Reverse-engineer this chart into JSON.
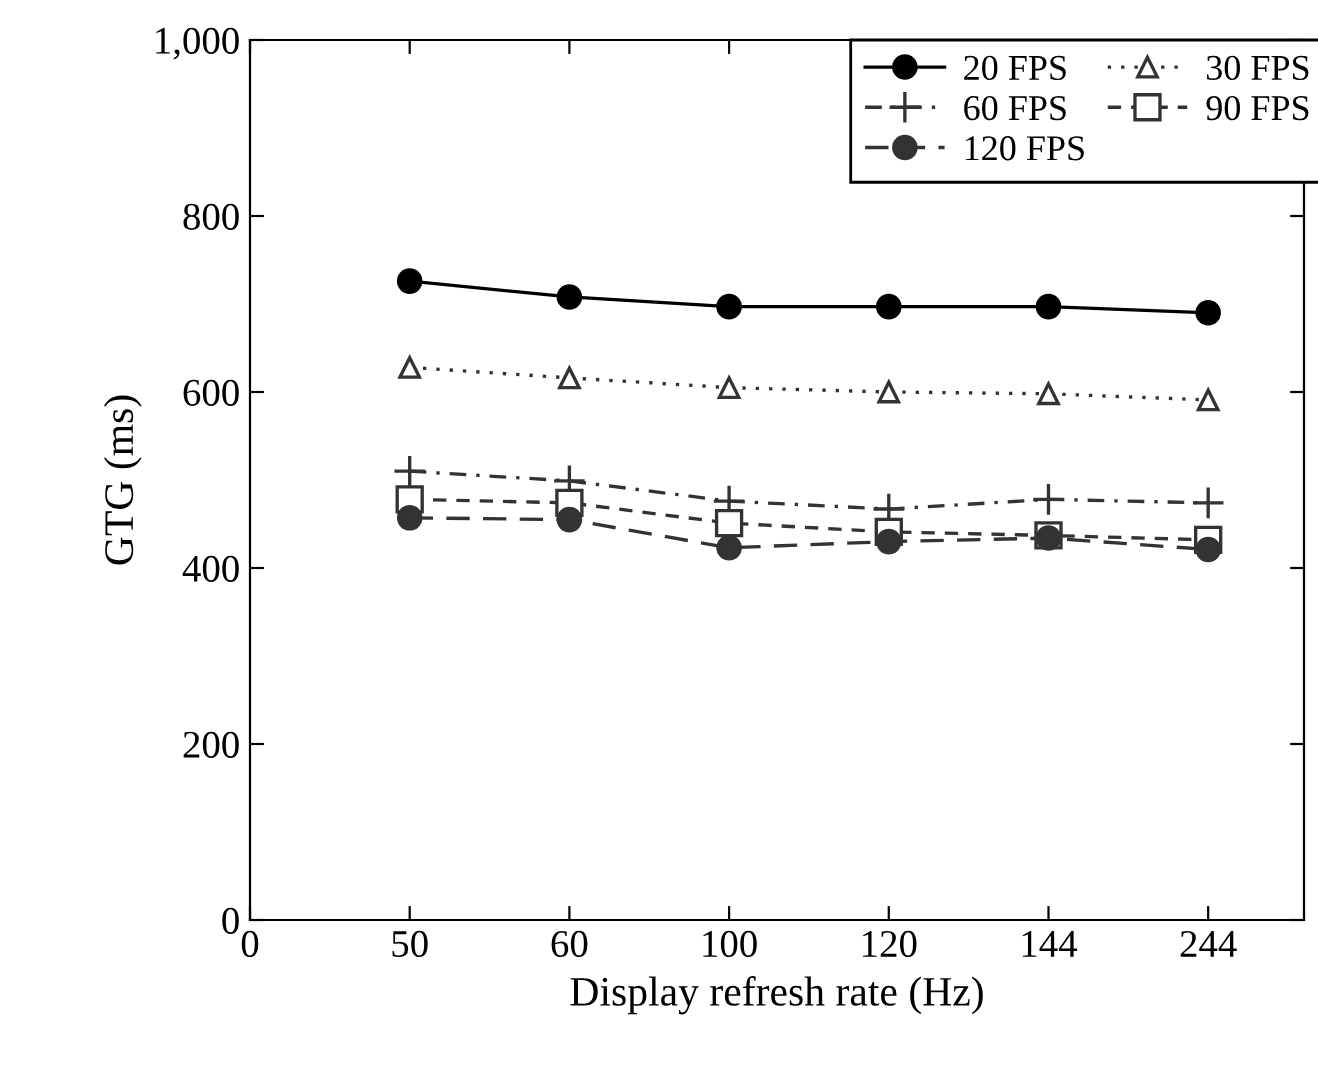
{
  "chart_data": {
    "type": "line",
    "xlabel": "Display refresh rate (Hz)",
    "ylabel": "GTG (ms)",
    "categories": [
      "0",
      "50",
      "60",
      "100",
      "120",
      "144",
      "244"
    ],
    "ylim": [
      0,
      1000
    ],
    "yticks": [
      0,
      200,
      400,
      600,
      800,
      {
        "value": 1000,
        "label": "1,000"
      }
    ],
    "grid": false,
    "legend": "top right",
    "series": [
      {
        "name": "20 FPS",
        "color": "#000000",
        "marker": "circle",
        "line_style": "solid",
        "values": [
          null,
          726,
          708,
          697,
          697,
          697,
          690
        ]
      },
      {
        "name": "30 FPS",
        "color": "#333333",
        "marker": "triangle",
        "line_style": "dotted",
        "values": [
          null,
          628,
          616,
          605,
          600,
          598,
          591
        ]
      },
      {
        "name": "60 FPS",
        "color": "#333333",
        "marker": "cross",
        "line_style": "dashdot",
        "values": [
          null,
          510,
          499,
          476,
          467,
          478,
          474
        ]
      },
      {
        "name": "90 FPS",
        "color": "#333333",
        "marker": "square",
        "line_style": "dashed",
        "values": [
          null,
          478,
          474,
          451,
          441,
          437,
          432
        ]
      },
      {
        "name": "120 FPS",
        "color": "#333333",
        "marker": "circle",
        "line_style": "longdash",
        "values": [
          null,
          457,
          455,
          423,
          430,
          434,
          421
        ]
      }
    ]
  }
}
